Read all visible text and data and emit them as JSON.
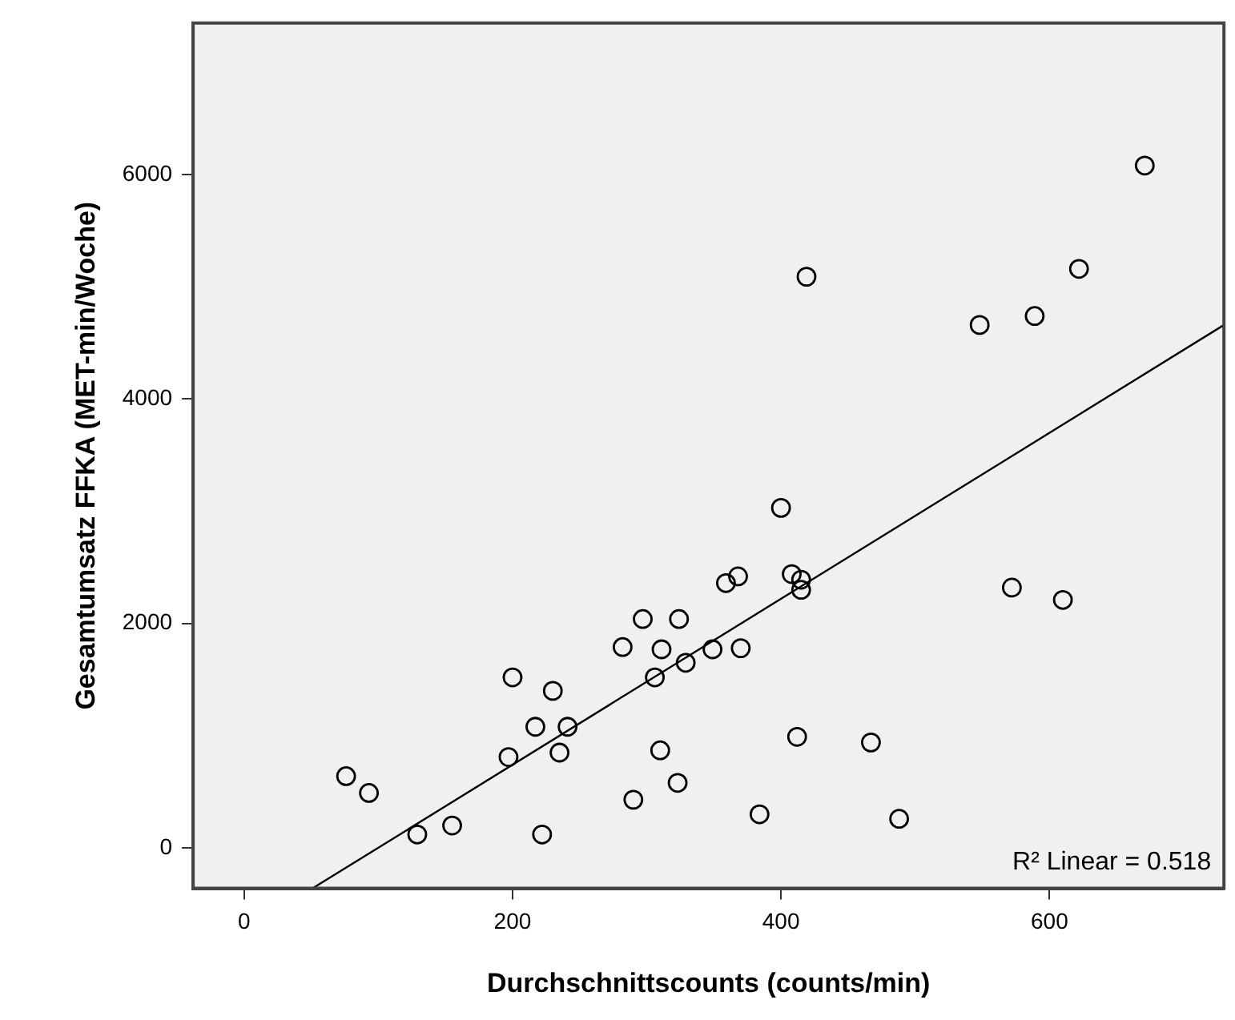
{
  "chart_data": {
    "type": "scatter",
    "xlabel": "Durchschnittscounts (counts/min)",
    "ylabel": "Gesamtumsatz FFKA (MET-min/Woche)",
    "xlim": [
      -38,
      730
    ],
    "ylim": [
      -360,
      7350
    ],
    "xticks": [
      0,
      200,
      400,
      600
    ],
    "yticks": [
      0,
      2000,
      4000,
      6000
    ],
    "grid": false,
    "legend": false,
    "marker": "circle",
    "annotations": [
      "R² Linear = 0.518"
    ],
    "series": [
      {
        "color": "#000000",
        "x": [
          671,
          419,
          548,
          589,
          622,
          400,
          76,
          93,
          129,
          155,
          222,
          200,
          230,
          217,
          241,
          197,
          235,
          290,
          310,
          323,
          282,
          297,
          324,
          311,
          306,
          329,
          359,
          368,
          408,
          415,
          415,
          349,
          370,
          572,
          610,
          412,
          467,
          384,
          488
        ],
        "values": [
          6080,
          5090,
          4660,
          4740,
          5160,
          3030,
          640,
          490,
          120,
          200,
          120,
          1520,
          1400,
          1080,
          1080,
          810,
          850,
          430,
          870,
          580,
          1790,
          2040,
          2040,
          1770,
          1520,
          1650,
          2360,
          2420,
          2440,
          2390,
          2300,
          1770,
          1780,
          2320,
          2210,
          990,
          940,
          300,
          260
        ]
      },
      {
        "type": "line",
        "color": "#000000",
        "marker": "none",
        "x": [
          51,
          730
        ],
        "values": [
          -360,
          4660
        ]
      }
    ]
  }
}
